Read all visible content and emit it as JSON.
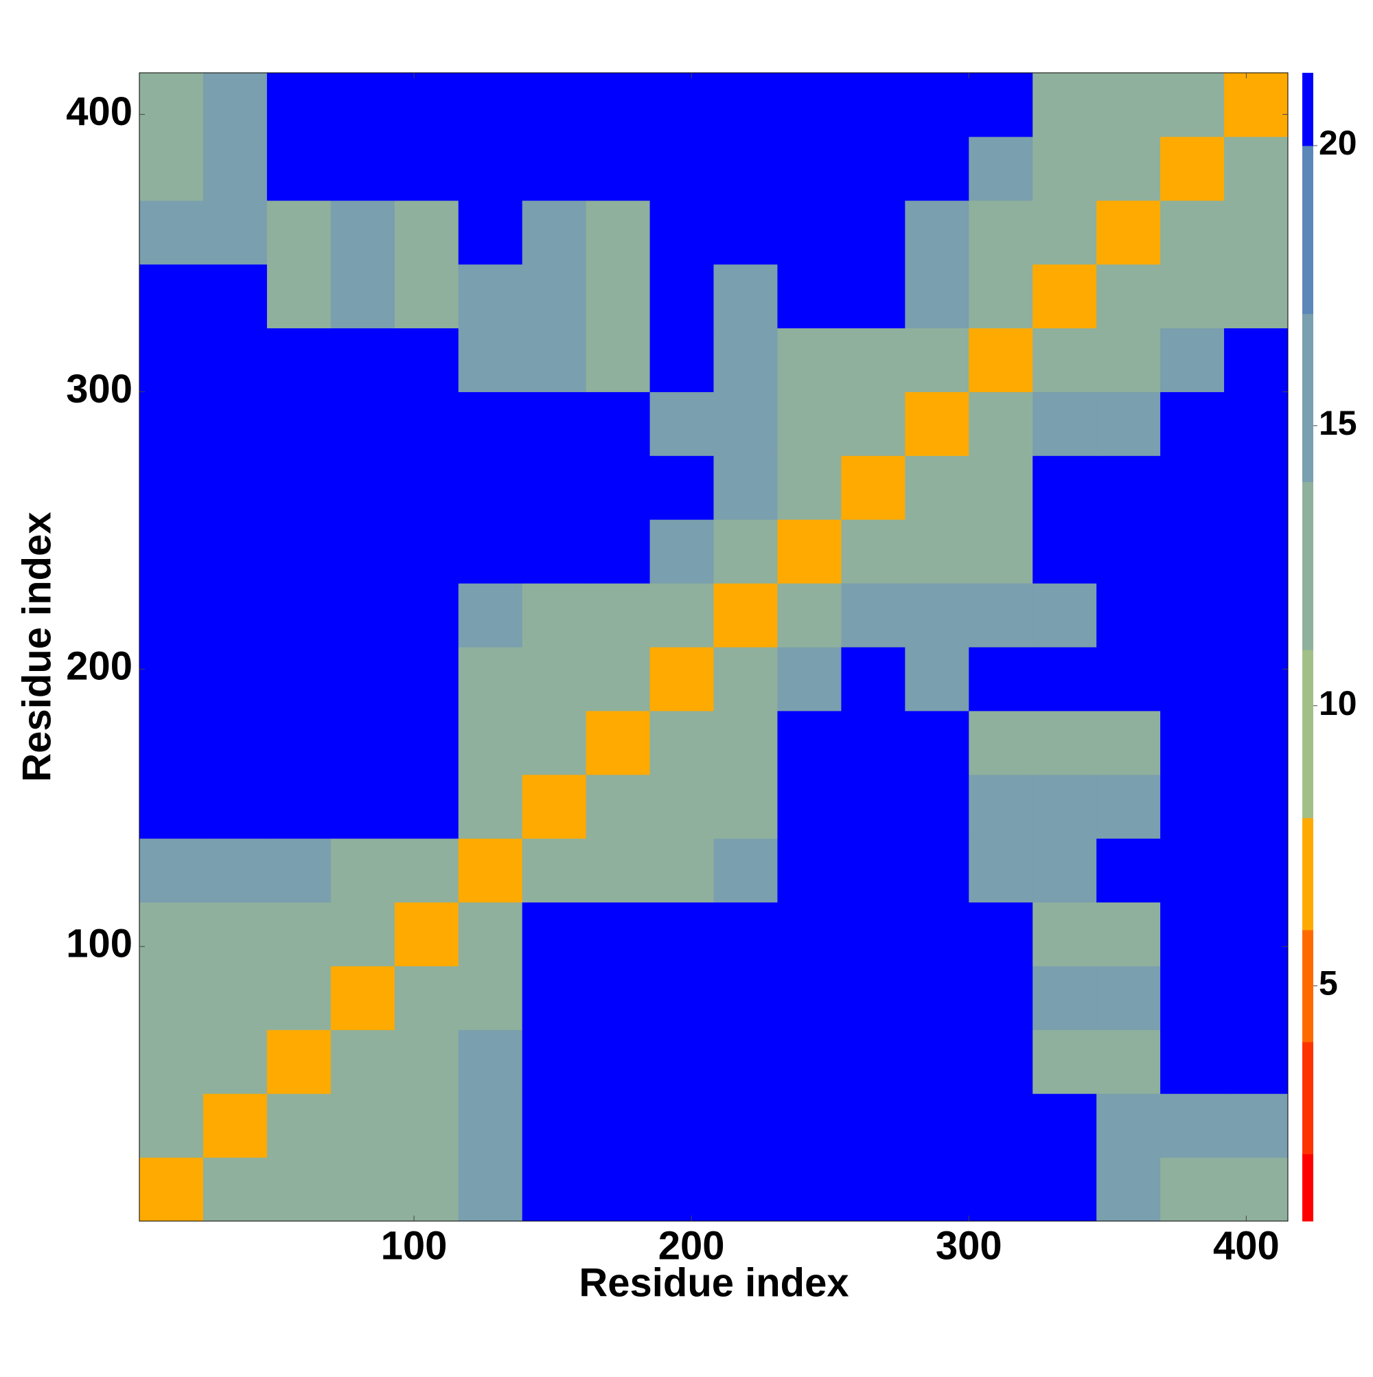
{
  "chart_data": {
    "type": "heatmap",
    "xlabel": "Residue index",
    "ylabel": "Residue index",
    "x_bins": [
      1,
      24,
      47,
      70,
      93,
      116,
      139,
      162,
      185,
      208,
      231,
      254,
      277,
      300,
      323,
      346,
      369,
      392,
      415
    ],
    "y_bins": [
      1,
      24,
      47,
      70,
      93,
      116,
      139,
      162,
      185,
      208,
      231,
      254,
      277,
      300,
      323,
      346,
      369,
      392,
      415
    ],
    "z": [
      [
        7,
        13,
        13,
        13,
        13,
        15,
        21,
        21,
        21,
        21,
        21,
        21,
        21,
        21,
        21,
        16,
        14,
        13
      ],
      [
        13,
        7,
        13,
        13,
        13,
        15,
        21,
        21,
        21,
        21,
        21,
        21,
        21,
        21,
        21,
        16,
        15,
        15
      ],
      [
        13,
        13,
        7,
        13,
        13,
        16,
        21,
        21,
        21,
        21,
        21,
        21,
        21,
        21,
        14,
        13,
        21,
        21
      ],
      [
        13,
        13,
        13,
        7,
        13,
        14,
        21,
        21,
        21,
        21,
        21,
        21,
        21,
        21,
        16,
        15,
        21,
        21
      ],
      [
        13,
        13,
        13,
        13,
        7,
        14,
        21,
        21,
        21,
        21,
        21,
        21,
        21,
        21,
        14,
        14,
        21,
        21
      ],
      [
        15,
        15,
        16,
        14,
        14,
        7,
        14,
        14,
        14,
        16,
        21,
        21,
        21,
        15,
        16,
        21,
        21,
        21
      ],
      [
        21,
        21,
        21,
        21,
        21,
        14,
        7,
        14,
        14,
        14,
        21,
        21,
        21,
        15,
        15,
        16,
        21,
        21
      ],
      [
        21,
        21,
        21,
        21,
        21,
        14,
        14,
        7,
        14,
        14,
        21,
        21,
        21,
        14,
        13,
        14,
        21,
        21
      ],
      [
        21,
        21,
        21,
        21,
        21,
        14,
        14,
        14,
        7,
        14,
        16,
        21,
        16,
        21,
        21,
        21,
        21,
        21
      ],
      [
        21,
        21,
        21,
        21,
        21,
        16,
        14,
        14,
        14,
        7,
        14,
        15,
        15,
        15,
        17,
        21,
        21,
        21
      ],
      [
        21,
        21,
        21,
        21,
        21,
        21,
        21,
        21,
        16,
        14,
        7,
        14,
        13,
        14,
        21,
        21,
        21,
        21
      ],
      [
        21,
        21,
        21,
        21,
        21,
        21,
        21,
        21,
        21,
        15,
        14,
        7,
        14,
        13,
        21,
        21,
        21,
        21
      ],
      [
        21,
        21,
        21,
        21,
        21,
        21,
        21,
        21,
        16,
        15,
        13,
        14,
        7,
        14,
        15,
        17,
        21,
        21
      ],
      [
        21,
        21,
        21,
        21,
        21,
        15,
        15,
        14,
        21,
        15,
        14,
        13,
        14,
        7,
        14,
        14,
        16,
        21
      ],
      [
        21,
        21,
        14,
        16,
        14,
        16,
        15,
        13,
        21,
        17,
        21,
        21,
        15,
        14,
        7,
        13,
        13,
        13
      ],
      [
        16,
        16,
        13,
        15,
        14,
        21,
        16,
        14,
        21,
        21,
        21,
        21,
        17,
        14,
        13,
        7,
        13,
        13
      ],
      [
        14,
        15,
        21,
        21,
        21,
        21,
        21,
        21,
        21,
        21,
        21,
        21,
        21,
        16,
        13,
        13,
        7,
        13
      ],
      [
        13,
        15,
        21,
        21,
        21,
        21,
        21,
        21,
        21,
        21,
        21,
        21,
        21,
        21,
        13,
        13,
        13,
        7
      ]
    ],
    "xlim": [
      1,
      415
    ],
    "ylim": [
      1,
      415
    ],
    "xticks": [
      100,
      200,
      300,
      400
    ],
    "yticks": [
      100,
      200,
      300,
      400
    ],
    "colorbar": {
      "lim": [
        0.8,
        21.3
      ],
      "ticks": [
        5,
        10,
        15,
        20
      ],
      "levels": [
        {
          "max": 2,
          "color": "#ff0000"
        },
        {
          "max": 4,
          "color": "#ff3300"
        },
        {
          "max": 6,
          "color": "#ff6a00"
        },
        {
          "max": 8,
          "color": "#ffaa00"
        },
        {
          "max": 11,
          "color": "#a3bf88"
        },
        {
          "max": 14,
          "color": "#8fb09c"
        },
        {
          "max": 17,
          "color": "#7a9fae"
        },
        {
          "max": 20,
          "color": "#5b88b8"
        },
        {
          "max": 21.3,
          "color": "#0000ff"
        }
      ]
    }
  }
}
